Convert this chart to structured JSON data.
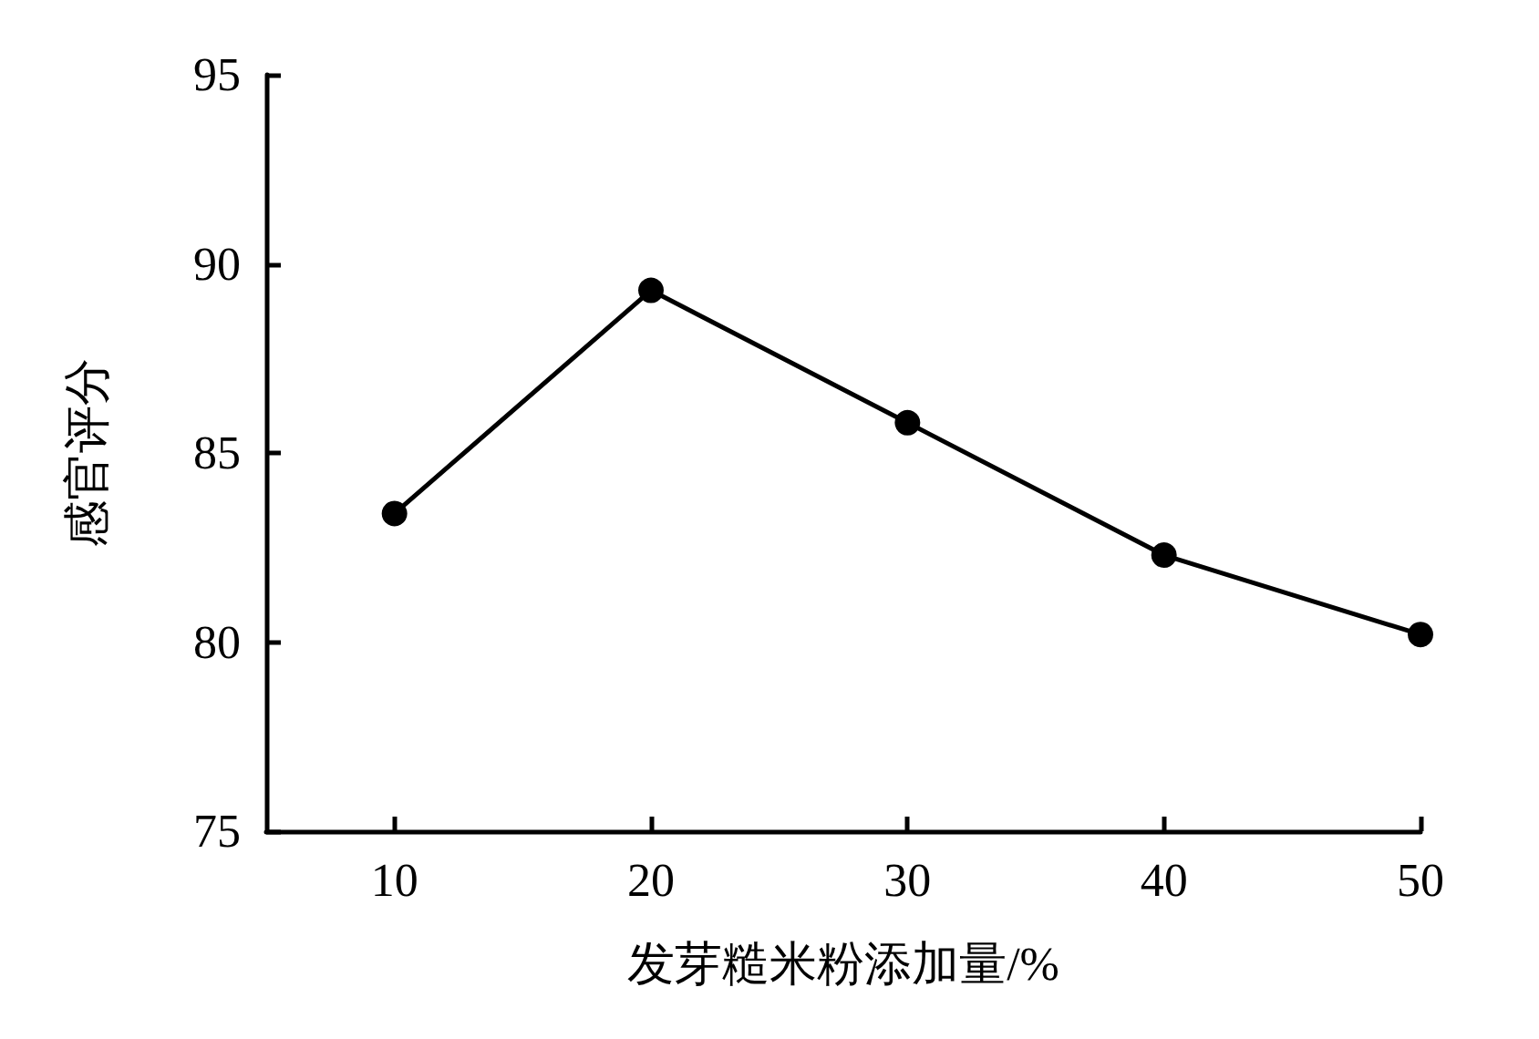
{
  "chart_data": {
    "type": "line",
    "xlabel": "发芽糙米粉添加量/%",
    "ylabel": "感官评分",
    "x": [
      10,
      20,
      30,
      40,
      50
    ],
    "series": [
      {
        "color": "#000000",
        "values": [
          83.4,
          89.3,
          85.8,
          82.3,
          80.2
        ]
      }
    ],
    "xlim": [
      5,
      50
    ],
    "xticks": [
      10,
      20,
      30,
      40,
      50
    ],
    "ylim": [
      75,
      95
    ],
    "yticks": [
      75,
      80,
      85,
      90,
      95
    ],
    "grid": false,
    "marker": "circle",
    "line_style": "solid"
  }
}
